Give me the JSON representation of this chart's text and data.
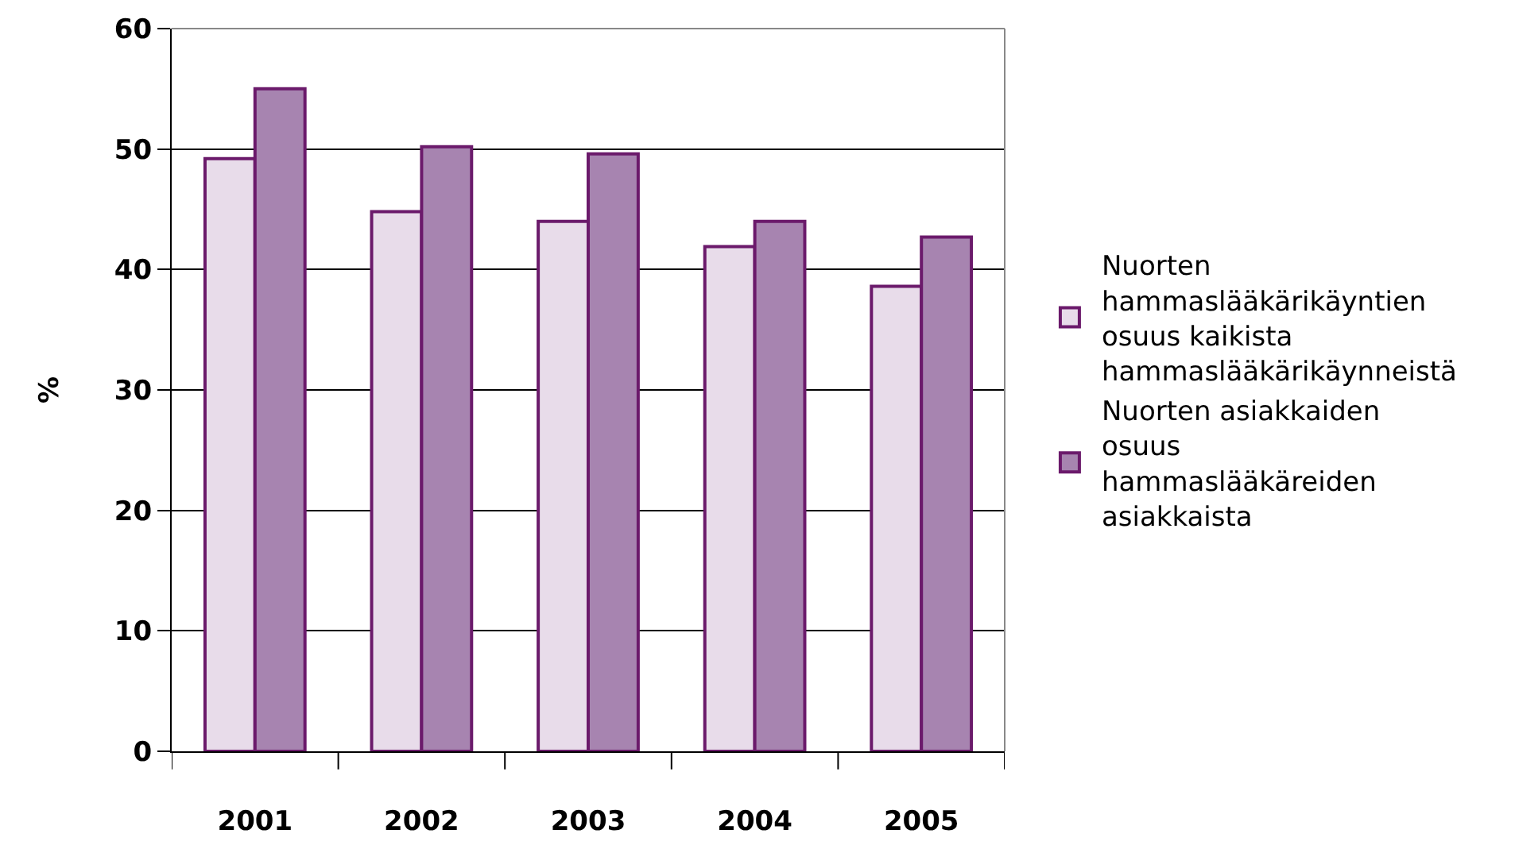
{
  "chart_data": {
    "type": "bar",
    "categories": [
      "2001",
      "2002",
      "2003",
      "2004",
      "2005"
    ],
    "series": [
      {
        "name": "Nuorten hammaslääkärikäyntien osuus kaikista hammaslääkärikäynneistä",
        "color": "#e8dcea",
        "values": [
          49.2,
          44.8,
          44.0,
          41.9,
          38.6
        ]
      },
      {
        "name": "Nuorten asiakkaiden osuus hammaslääkäreiden asiakkaista",
        "color": "#a784b0",
        "values": [
          55.0,
          50.2,
          49.6,
          44.0,
          42.7
        ]
      }
    ],
    "ylabel": "%",
    "ylim": [
      0,
      60
    ],
    "yticks": [
      0,
      10,
      20,
      30,
      40,
      50,
      60
    ],
    "grid": "y",
    "legend": "right"
  }
}
